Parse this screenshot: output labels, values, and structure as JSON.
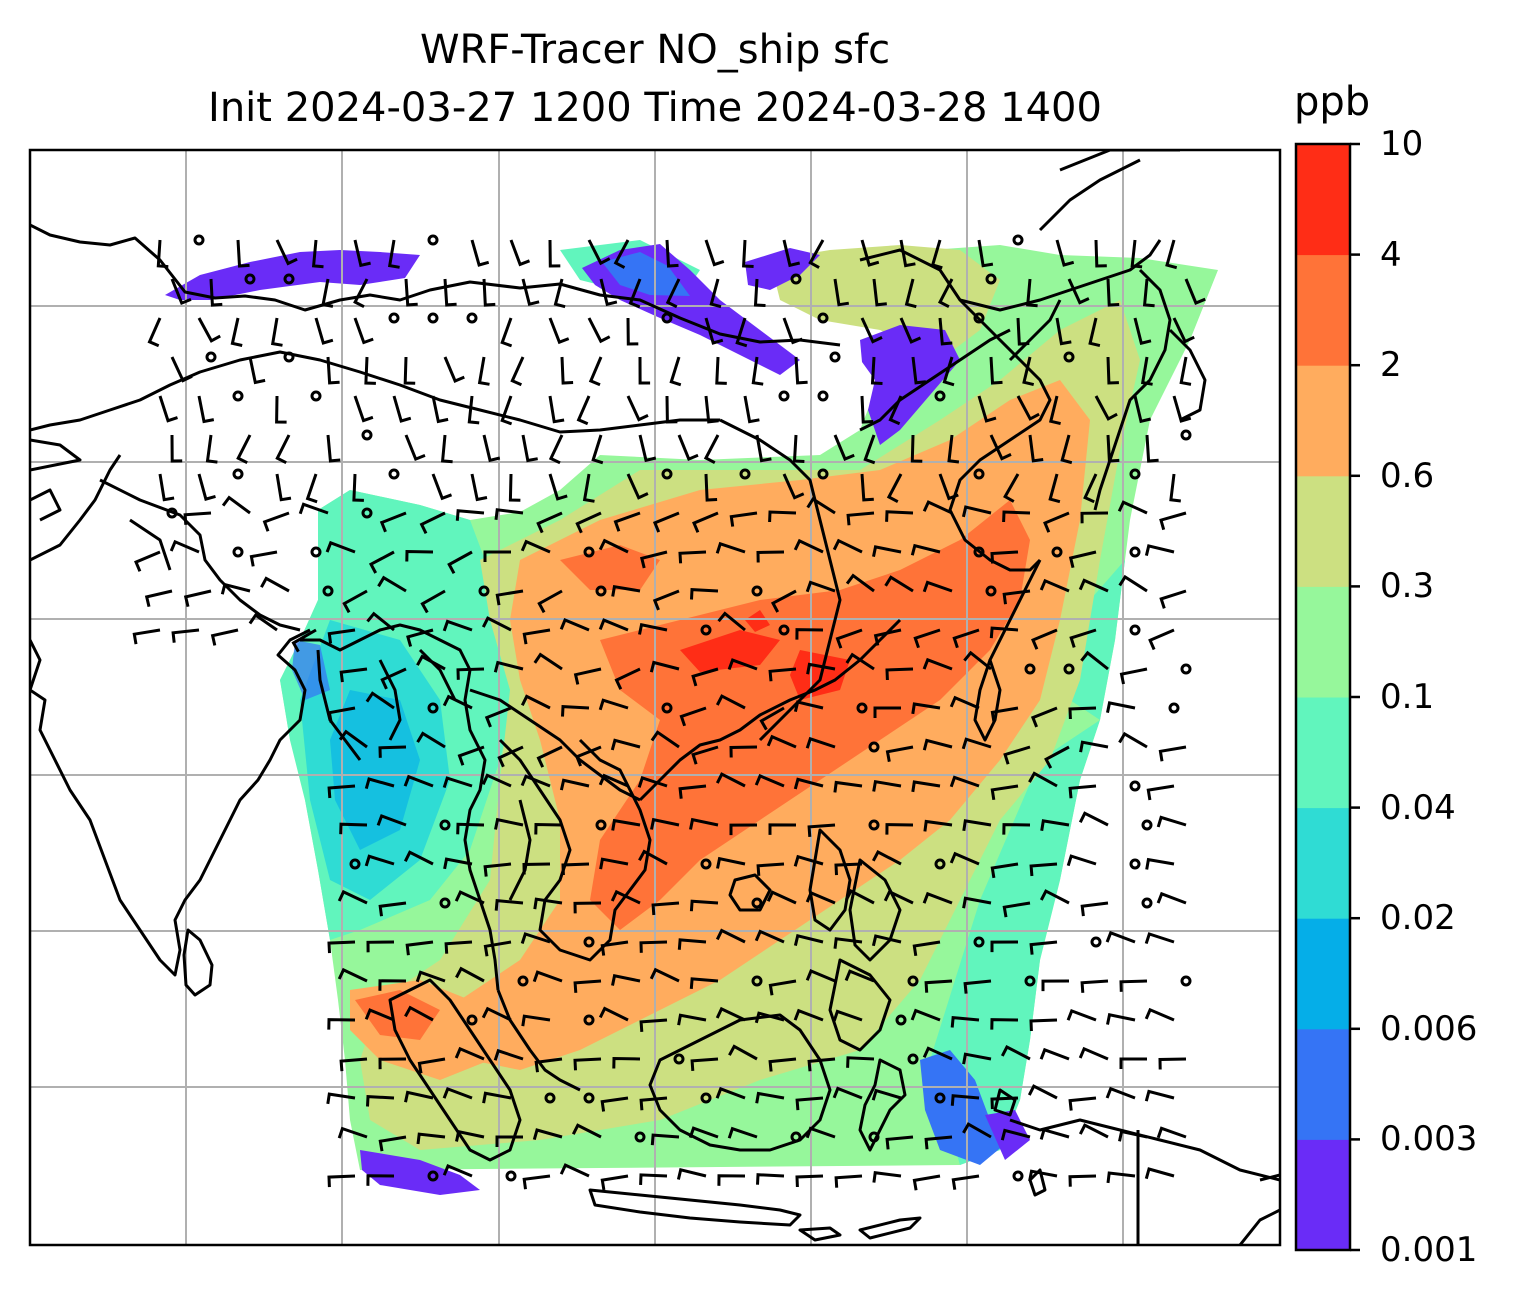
{
  "title": {
    "line1": "WRF-Tracer NO_ship sfc",
    "line2": "Init 2024-03-27 1200 Time 2024-03-28 1400"
  },
  "colorbar": {
    "unit": "ppb",
    "levels": [
      "0.001",
      "0.003",
      "0.006",
      "0.02",
      "0.04",
      "0.1",
      "0.3",
      "0.6",
      "2",
      "4",
      "10"
    ],
    "colors": [
      "#6a2cf7",
      "#3574f5",
      "#05aee8",
      "#2fdcd4",
      "#61f5bd",
      "#96f79b",
      "#cce081",
      "#ffac5e",
      "#ff7338",
      "#ff2d16"
    ]
  },
  "map": {
    "field": "NO_ship surface concentration",
    "overlay": "wind barbs",
    "coastline_color": "#000000",
    "gridline_color": "#b0b0b0"
  }
}
